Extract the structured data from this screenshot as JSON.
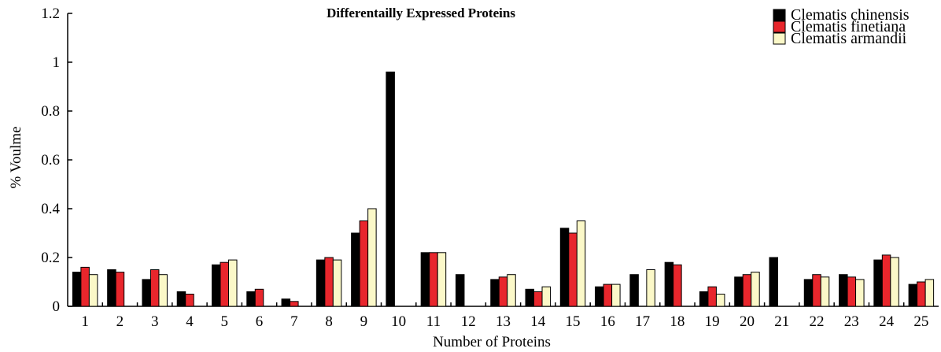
{
  "chart_data": {
    "type": "bar",
    "title": "Differentaillу Expressed Proteins",
    "xlabel": "Number of Proteins",
    "ylabel": "% Voulme",
    "ylim": [
      0,
      1.2
    ],
    "yticks": [
      "0",
      "0.2",
      "0.4",
      "0.6",
      "0.8",
      "1",
      "1.2"
    ],
    "grid": false,
    "legend_position": "top-right",
    "categories": [
      "1",
      "2",
      "3",
      "4",
      "5",
      "6",
      "7",
      "8",
      "9",
      "10",
      "11",
      "12",
      "13",
      "14",
      "15",
      "16",
      "17",
      "18",
      "19",
      "20",
      "21",
      "22",
      "23",
      "24",
      "25"
    ],
    "series": [
      {
        "name": "Clematis chinensis",
        "color": "#000000",
        "values": [
          0.14,
          0.15,
          0.11,
          0.06,
          0.17,
          0.06,
          0.03,
          0.19,
          0.3,
          0.96,
          0.22,
          0.13,
          0.11,
          0.07,
          0.32,
          0.08,
          0.13,
          0.18,
          0.06,
          0.12,
          0.2,
          0.11,
          0.13,
          0.19,
          0.09
        ]
      },
      {
        "name": "Clematis finetiana",
        "color": "#e8262c",
        "values": [
          0.16,
          0.14,
          0.15,
          0.05,
          0.18,
          0.07,
          0.02,
          0.2,
          0.35,
          0,
          0.22,
          0,
          0.12,
          0.06,
          0.3,
          0.09,
          0,
          0.17,
          0.08,
          0.13,
          0,
          0.13,
          0.12,
          0.21,
          0.1
        ]
      },
      {
        "name": "Clematis armandii",
        "color": "#fbf8c8",
        "values": [
          0.13,
          0,
          0.13,
          0,
          0.19,
          0,
          0,
          0.19,
          0.4,
          0,
          0.22,
          0,
          0.13,
          0.08,
          0.35,
          0.09,
          0.15,
          0,
          0.05,
          0.14,
          0,
          0.12,
          0.11,
          0.2,
          0.11
        ]
      }
    ]
  }
}
